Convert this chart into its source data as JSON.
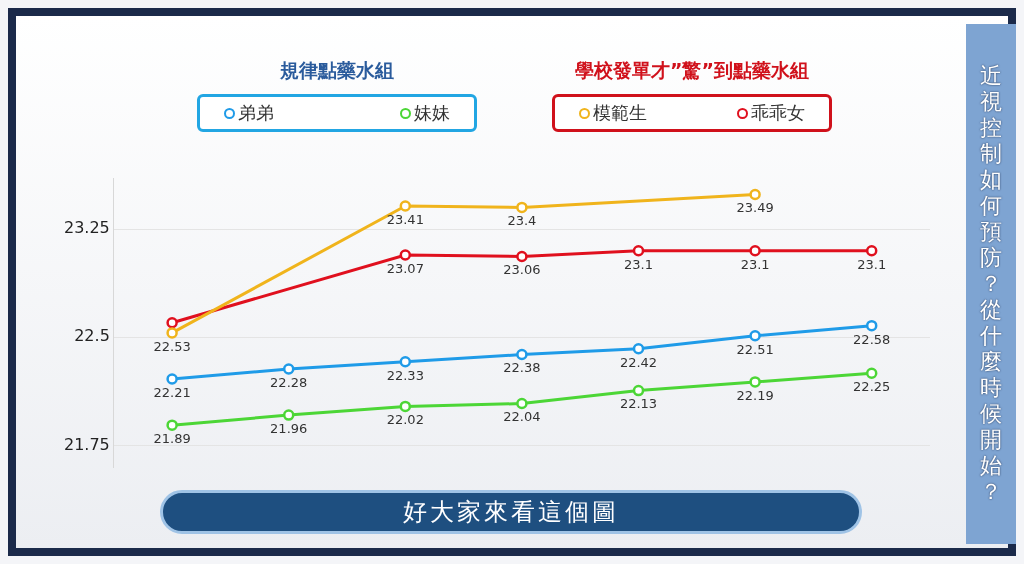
{
  "chart_data": {
    "type": "line",
    "title": "近視控制如何預防？從什麼時候開始？",
    "annotations": [
      "規律點藥水組",
      "學校發單才”驚”到點藥水組",
      "好大家來看這個圖"
    ],
    "categories": [
      null,
      null,
      null,
      null,
      null,
      null,
      null
    ],
    "series": [
      {
        "name": "弟弟",
        "color": "#1f9be8",
        "values": [
          22.21,
          22.28,
          22.33,
          22.38,
          22.42,
          22.51,
          22.58
        ],
        "value_labels": [
          "22.21",
          "22.28",
          "22.33",
          "22.38",
          "22.42",
          "22.51",
          "22.58"
        ]
      },
      {
        "name": "妹妹",
        "color": "#4cd636",
        "values": [
          21.89,
          21.96,
          22.02,
          22.04,
          22.13,
          22.19,
          22.25
        ],
        "value_labels": [
          "21.89",
          "21.96",
          "22.02",
          "22.04",
          "22.13",
          "22.19",
          "22.25"
        ]
      },
      {
        "name": "模範生",
        "color": "#f0b41c",
        "values": [
          22.53,
          null,
          23.41,
          23.4,
          null,
          23.49,
          null
        ],
        "value_labels": [
          "22.53",
          null,
          "23.41",
          "23.4",
          null,
          "23.49",
          null
        ]
      },
      {
        "name": "乖乖女",
        "color": "#e0101e",
        "values": [
          22.6,
          null,
          23.07,
          23.06,
          23.1,
          23.1,
          23.1
        ],
        "value_labels": [
          null,
          null,
          "23.07",
          "23.06",
          "23.1",
          "23.1",
          "23.1"
        ]
      }
    ],
    "ylim": [
      21.6,
      23.6
    ],
    "yticks": [
      21.75,
      22.5,
      23.25
    ],
    "grid": "y",
    "tick_labels": "y",
    "legend": "top",
    "marker": "circle",
    "line_style": "solid"
  }
}
